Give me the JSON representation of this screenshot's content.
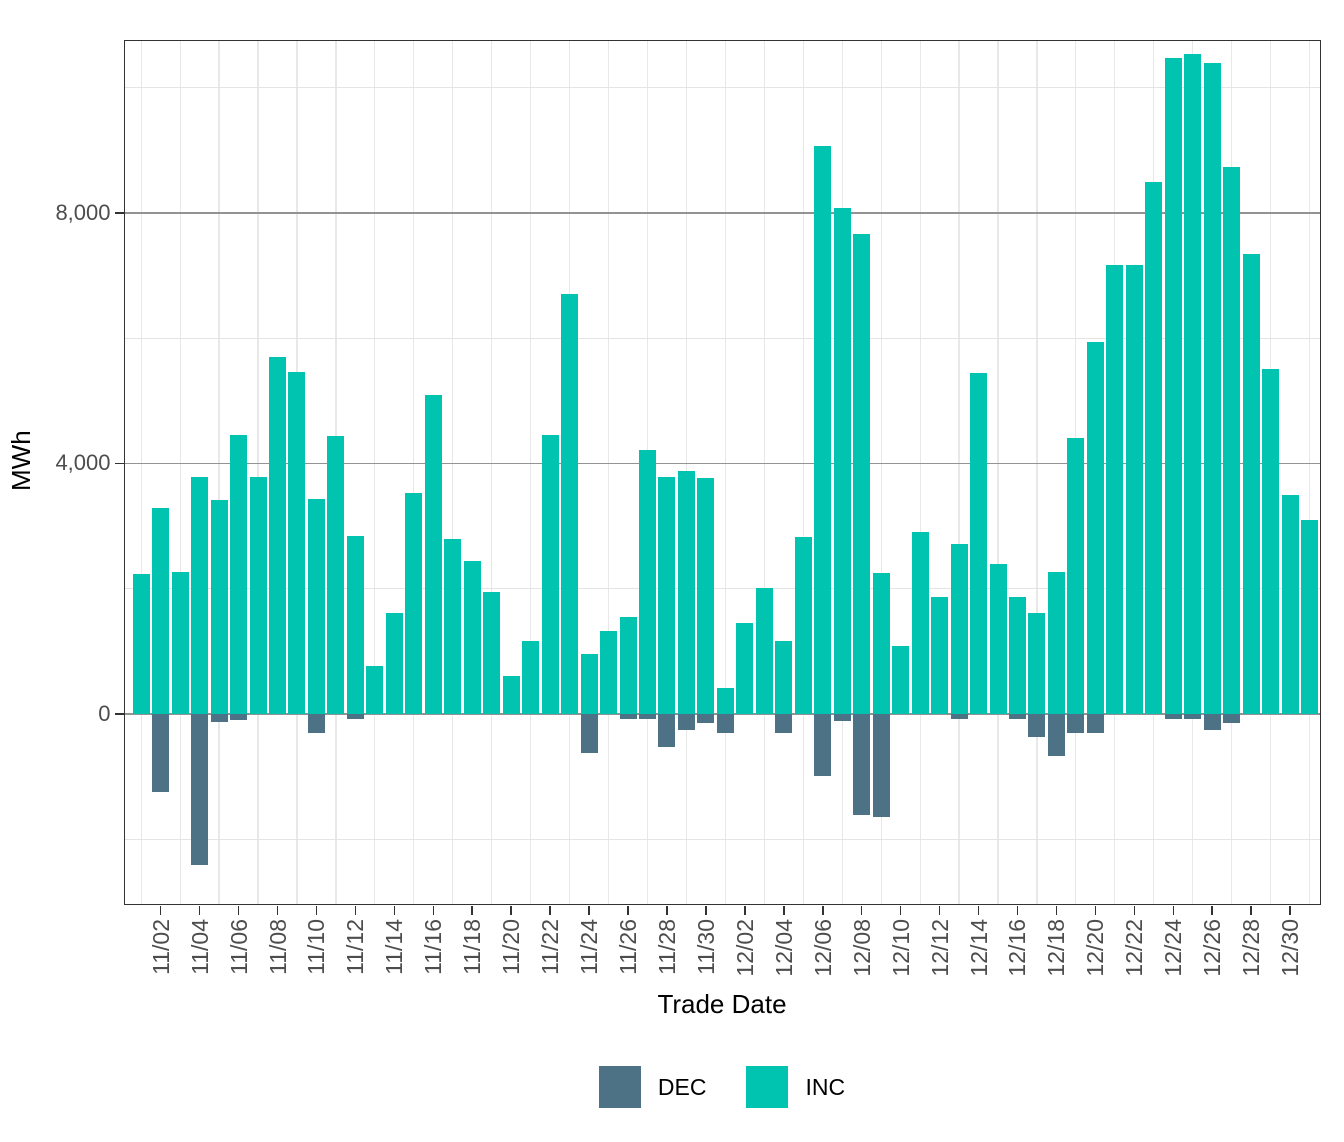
{
  "figure": {
    "y_axis_title": "MWh",
    "x_axis_title": "Trade Date",
    "colors": {
      "inc": "#00C4AF",
      "dec": "#4E7285",
      "axis_text": "#4D4D4D",
      "axis_title": "#000000",
      "panel_border": "#333333",
      "grid_major": "#939393",
      "grid_minor": "#E4E4E4",
      "grid_vertical": "#E8E8E8",
      "background": "#FFFFFF"
    }
  },
  "legend": {
    "position": "bottom",
    "items": [
      {
        "label": "DEC",
        "color": "#4E7285"
      },
      {
        "label": "INC",
        "color": "#00C4AF"
      }
    ]
  },
  "chart_data": {
    "type": "bar",
    "title": "",
    "xlabel": "Trade Date",
    "ylabel": "MWh",
    "ylim": [
      -3050,
      10760
    ],
    "grid": true,
    "legend_position": "bottom",
    "y_ticks": [
      {
        "value": 0,
        "label": "0"
      },
      {
        "value": 4000,
        "label": "4,000"
      },
      {
        "value": 8000,
        "label": "8,000"
      }
    ],
    "y_major_gridlines": [
      0,
      4000,
      8000
    ],
    "y_minor_gridlines": [
      -2000,
      2000,
      6000,
      10000
    ],
    "x_tick_every": 2,
    "x_first_labeled_index": 1,
    "categories": [
      "11/01",
      "11/02",
      "11/03",
      "11/04",
      "11/05",
      "11/06",
      "11/07",
      "11/08",
      "11/09",
      "11/10",
      "11/11",
      "11/12",
      "11/13",
      "11/14",
      "11/15",
      "11/16",
      "11/17",
      "11/18",
      "11/19",
      "11/20",
      "11/21",
      "11/22",
      "11/23",
      "11/24",
      "11/25",
      "11/26",
      "11/27",
      "11/28",
      "11/29",
      "11/30",
      "12/01",
      "12/02",
      "12/03",
      "12/04",
      "12/05",
      "12/06",
      "12/07",
      "12/08",
      "12/09",
      "12/10",
      "12/11",
      "12/12",
      "12/13",
      "12/14",
      "12/15",
      "12/16",
      "12/17",
      "12/18",
      "12/19",
      "12/20",
      "12/21",
      "12/22",
      "12/23",
      "12/24",
      "12/25",
      "12/26",
      "12/27",
      "12/28",
      "12/29",
      "12/30",
      "12/31"
    ],
    "series": [
      {
        "name": "DEC",
        "color": "#4E7285",
        "values": [
          0,
          -1250,
          0,
          -2410,
          -120,
          -100,
          0,
          0,
          0,
          -300,
          0,
          -80,
          0,
          0,
          0,
          0,
          0,
          0,
          0,
          0,
          0,
          0,
          0,
          -620,
          0,
          -80,
          -80,
          -520,
          -260,
          -140,
          -310,
          0,
          0,
          -310,
          0,
          -990,
          -110,
          -1610,
          -1650,
          0,
          0,
          0,
          -80,
          0,
          0,
          -80,
          -360,
          -670,
          -310,
          -310,
          0,
          0,
          0,
          -80,
          -80,
          -260,
          -150,
          0,
          0,
          0,
          0
        ]
      },
      {
        "name": "INC",
        "color": "#00C4AF",
        "values": [
          2240,
          3290,
          2260,
          3790,
          3410,
          4460,
          3790,
          5700,
          5460,
          3440,
          4440,
          2840,
          770,
          1620,
          3530,
          5100,
          2800,
          2440,
          1950,
          600,
          1160,
          4450,
          6700,
          950,
          1320,
          1550,
          4210,
          3790,
          3880,
          3770,
          420,
          1450,
          2010,
          1170,
          2820,
          9060,
          8070,
          7670,
          2250,
          1090,
          2900,
          1870,
          2710,
          5450,
          2390,
          1870,
          1620,
          2270,
          4400,
          5940,
          7160,
          7160,
          8490,
          10470,
          10540,
          10390,
          8730,
          7350,
          5510,
          3490,
          3100
        ]
      }
    ]
  }
}
